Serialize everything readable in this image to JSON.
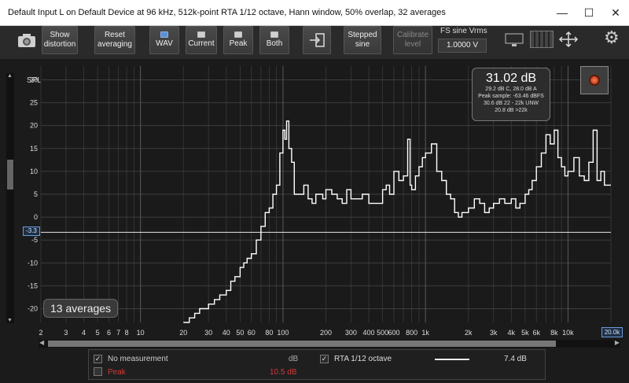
{
  "window": {
    "title": "Default Input L on Default Device at 96 kHz, 512k-point RTA 1/12 octave, Hann window, 50% overlap, 32 averages",
    "minimize": "—",
    "maximize": "☐",
    "close": "✕"
  },
  "toolbar": {
    "show_distortion": [
      "Show",
      "distortion"
    ],
    "reset_averaging": [
      "Reset",
      "averaging"
    ],
    "wav": "WAV",
    "current": "Current",
    "peak": "Peak",
    "both": "Both",
    "stepped_sine": [
      "Stepped",
      "sine"
    ],
    "calibrate_level": [
      "Calibrate",
      "level"
    ],
    "fs_sine_label": "FS sine Vrms",
    "fs_sine_value": "1.0000 V"
  },
  "graph": {
    "y_axis_label": "SPL",
    "y_ticks": [
      "30",
      "25",
      "20",
      "15",
      "10",
      "5",
      "0",
      "-5",
      "-10",
      "-15",
      "-20"
    ],
    "x_ticks": [
      "2",
      "3",
      "4",
      "5",
      "6",
      "7",
      "8",
      "10",
      "20",
      "30",
      "40",
      "50",
      "60",
      "80",
      "100",
      "200",
      "300",
      "400",
      "500",
      "600",
      "800",
      "1k",
      "2k",
      "3k",
      "4k",
      "5k",
      "6k",
      "8k",
      "10k"
    ],
    "x_max_label": "20.0k",
    "cursor_level": "-3.3",
    "averages_badge": "13 averages",
    "readout": {
      "value": "31.02 dB",
      "line1": "29.2 dB C, 28.0 dB A",
      "line2": "Peak sample: -63.46 dBFS",
      "line3": "30.6 dB 22 - 22k UNW",
      "line4": "20.8 dB >22k"
    }
  },
  "chart_data": {
    "type": "line",
    "xlabel": "",
    "ylabel": "SPL",
    "x_scale": "log",
    "xlim": [
      2,
      20000
    ],
    "ylim": [
      -23,
      33
    ],
    "grid": true,
    "series": [
      {
        "x": [
          20,
          22,
          24,
          26,
          28,
          30,
          33,
          36,
          40,
          43,
          46,
          50,
          53,
          56,
          60,
          65,
          70,
          75,
          80,
          85,
          90,
          95,
          100,
          103,
          106,
          110,
          115,
          120,
          130,
          140,
          150,
          160,
          170,
          180,
          190,
          200,
          220,
          240,
          260,
          280,
          300,
          330,
          360,
          400,
          430,
          460,
          500,
          530,
          560,
          600,
          650,
          700,
          750,
          780,
          800,
          850,
          900,
          950,
          1000,
          1100,
          1200,
          1300,
          1400,
          1500,
          1600,
          1700,
          1800,
          2000,
          2200,
          2400,
          2600,
          2800,
          3000,
          3300,
          3600,
          4000,
          4300,
          4600,
          5000,
          5300,
          5600,
          6000,
          6500,
          7000,
          7500,
          8000,
          8500,
          9000,
          9500,
          10000,
          11000,
          12000,
          13000,
          14000,
          15000,
          16000,
          17000,
          18000,
          20000
        ],
        "y": [
          -23,
          -22,
          -21,
          -20,
          -20,
          -19,
          -18,
          -17,
          -16,
          -14,
          -13,
          -11,
          -10,
          -9,
          -8,
          -5,
          -2,
          1,
          2,
          5,
          7,
          14,
          19,
          17,
          21,
          15,
          12,
          5,
          5,
          7,
          4,
          3,
          5,
          5,
          4,
          6,
          5,
          4,
          3,
          6,
          4,
          4,
          5,
          3,
          3,
          3,
          6,
          7,
          5,
          10,
          8,
          9,
          17,
          7,
          6,
          9,
          11,
          13,
          14,
          16,
          10,
          8,
          5,
          4,
          1,
          0,
          1,
          2,
          4,
          3,
          1,
          2,
          3,
          4,
          3,
          4,
          2,
          3,
          5,
          6,
          8,
          11,
          14,
          18,
          16,
          19,
          13,
          11,
          9,
          10,
          13,
          9,
          8,
          12,
          19,
          8,
          10,
          7,
          7
        ]
      }
    ]
  },
  "legend": {
    "row1_label": "No measurement",
    "row1_unit": "dB",
    "row2_label": "Peak",
    "row2_value": "10.5 dB",
    "row3_label": "RTA 1/12 octave",
    "row3_value": "7.4 dB",
    "check_mark": "✓"
  },
  "colors": {
    "trace": "#ffffff",
    "grid": "#3d3d3d",
    "peak": "#d23a3a",
    "accent": "#6c9bd6"
  }
}
